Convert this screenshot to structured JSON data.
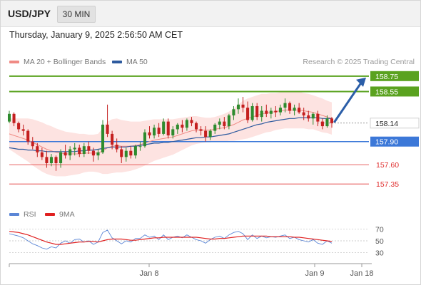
{
  "header": {
    "symbol": "USD/JPY",
    "timeframe": "30 MIN",
    "datetime": "Thursday, January 9, 2025 2:56:50 AM CET"
  },
  "legend": {
    "items": [
      {
        "label": "MA 20 + Bollinger Bands",
        "color": "#f08a84"
      },
      {
        "label": "MA 50",
        "color": "#2d5a9e"
      }
    ],
    "credit": "Research © 2025 Trading Central"
  },
  "rsi_legend": {
    "items": [
      {
        "label": "RSI",
        "color": "#5b86d6"
      },
      {
        "label": "9MA",
        "color": "#e02020"
      }
    ]
  },
  "chart_data": [
    {
      "type": "candlestick",
      "title": "USD/JPY 30 MIN",
      "grid": false,
      "y_range": [
        157.25,
        158.85
      ],
      "x_ticks": [
        "Jan 8",
        "Jan 9",
        "Jan 18"
      ],
      "levels": [
        {
          "value": 158.75,
          "label": "158.75",
          "color": "#5aa21f",
          "kind": "resistance"
        },
        {
          "value": 158.55,
          "label": "158.55",
          "color": "#5aa21f",
          "kind": "resistance"
        },
        {
          "value": 158.14,
          "label": "158.14",
          "color": "#222222",
          "kind": "last"
        },
        {
          "value": 157.9,
          "label": "157.90",
          "color": "#3c78d8",
          "kind": "pivot"
        },
        {
          "value": 157.6,
          "label": "157.60",
          "color": "#e03030",
          "kind": "support"
        },
        {
          "value": 157.35,
          "label": "157.35",
          "color": "#e03030",
          "kind": "support"
        }
      ],
      "scenario_arrow": {
        "from": 158.14,
        "to": 158.75,
        "direction": "up",
        "color": "#2b5ea8"
      },
      "candles": [
        [
          158.16,
          158.3,
          158.14,
          158.26
        ],
        [
          158.26,
          158.28,
          158.1,
          158.14
        ],
        [
          158.14,
          158.16,
          158.02,
          158.06
        ],
        [
          158.06,
          158.12,
          157.98,
          158.04
        ],
        [
          158.04,
          158.06,
          157.86,
          157.9
        ],
        [
          157.9,
          157.96,
          157.8,
          157.84
        ],
        [
          157.84,
          157.88,
          157.7,
          157.76
        ],
        [
          157.76,
          157.82,
          157.66,
          157.7
        ],
        [
          157.7,
          157.78,
          157.56,
          157.62
        ],
        [
          157.62,
          157.74,
          157.58,
          157.7
        ],
        [
          157.7,
          157.72,
          157.52,
          157.62
        ],
        [
          157.62,
          157.8,
          157.56,
          157.76
        ],
        [
          157.76,
          157.86,
          157.68,
          157.72
        ],
        [
          157.72,
          157.84,
          157.66,
          157.8
        ],
        [
          157.8,
          157.88,
          157.72,
          157.82
        ],
        [
          157.82,
          157.86,
          157.7,
          157.74
        ],
        [
          157.74,
          157.88,
          157.7,
          157.84
        ],
        [
          157.84,
          157.9,
          157.74,
          157.78
        ],
        [
          157.78,
          157.82,
          157.64,
          157.72
        ],
        [
          157.72,
          157.8,
          157.66,
          157.76
        ],
        [
          157.76,
          158.18,
          157.74,
          158.12
        ],
        [
          158.12,
          158.38,
          157.96,
          158.0
        ],
        [
          158.0,
          158.04,
          157.8,
          157.86
        ],
        [
          157.86,
          157.94,
          157.76,
          157.8
        ],
        [
          157.8,
          157.84,
          157.62,
          157.7
        ],
        [
          157.7,
          157.82,
          157.64,
          157.78
        ],
        [
          157.78,
          157.84,
          157.68,
          157.72
        ],
        [
          157.72,
          157.86,
          157.68,
          157.84
        ],
        [
          157.84,
          157.9,
          157.78,
          157.84
        ],
        [
          157.84,
          158.06,
          157.82,
          158.02
        ],
        [
          158.02,
          158.1,
          157.94,
          157.98
        ],
        [
          157.98,
          158.12,
          157.94,
          158.08
        ],
        [
          158.08,
          158.14,
          157.96,
          158.0
        ],
        [
          158.0,
          158.2,
          157.98,
          158.16
        ],
        [
          158.16,
          158.2,
          157.94,
          157.98
        ],
        [
          157.98,
          158.1,
          157.94,
          158.06
        ],
        [
          158.06,
          158.14,
          158.0,
          158.12
        ],
        [
          158.12,
          158.18,
          158.02,
          158.08
        ],
        [
          158.08,
          158.2,
          158.04,
          158.18
        ],
        [
          158.18,
          158.22,
          158.1,
          158.14
        ],
        [
          158.14,
          158.16,
          158.02,
          158.06
        ],
        [
          158.06,
          158.1,
          157.98,
          158.04
        ],
        [
          158.04,
          158.1,
          157.9,
          157.96
        ],
        [
          157.96,
          158.06,
          157.92,
          158.04
        ],
        [
          158.04,
          158.14,
          158.0,
          158.12
        ],
        [
          158.12,
          158.2,
          158.06,
          158.16
        ],
        [
          158.16,
          158.22,
          158.06,
          158.1
        ],
        [
          158.1,
          158.26,
          158.06,
          158.24
        ],
        [
          158.24,
          158.36,
          158.18,
          158.32
        ],
        [
          158.32,
          158.46,
          158.26,
          158.38
        ],
        [
          158.38,
          158.48,
          158.28,
          158.34
        ],
        [
          158.34,
          158.42,
          158.14,
          158.18
        ],
        [
          158.18,
          158.4,
          158.16,
          158.36
        ],
        [
          158.36,
          158.4,
          158.18,
          158.22
        ],
        [
          158.22,
          158.36,
          158.16,
          158.3
        ],
        [
          158.3,
          158.38,
          158.22,
          158.26
        ],
        [
          158.26,
          158.34,
          158.2,
          158.3
        ],
        [
          158.3,
          158.36,
          158.22,
          158.28
        ],
        [
          158.28,
          158.38,
          158.24,
          158.34
        ],
        [
          158.34,
          158.46,
          158.28,
          158.4
        ],
        [
          158.4,
          158.42,
          158.26,
          158.3
        ],
        [
          158.3,
          158.38,
          158.24,
          158.34
        ],
        [
          158.34,
          158.4,
          158.26,
          158.28
        ],
        [
          158.28,
          158.34,
          158.18,
          158.24
        ],
        [
          158.24,
          158.3,
          158.16,
          158.2
        ],
        [
          158.2,
          158.28,
          158.12,
          158.26
        ],
        [
          158.26,
          158.3,
          158.1,
          158.16
        ],
        [
          158.16,
          158.2,
          158.06,
          158.1
        ],
        [
          158.1,
          158.24,
          158.08,
          158.2
        ],
        [
          158.2,
          158.22,
          158.08,
          158.14
        ]
      ],
      "ma20": [
        158.0,
        157.98,
        157.96,
        157.94,
        157.92,
        157.89,
        157.86,
        157.83,
        157.8,
        157.78,
        157.76,
        157.75,
        157.74,
        157.74,
        157.74,
        157.74,
        157.75,
        157.75,
        157.75,
        157.75,
        157.78,
        157.82,
        157.84,
        157.85,
        157.84,
        157.84,
        157.84,
        157.85,
        157.86,
        157.88,
        157.9,
        157.92,
        157.93,
        157.94,
        157.95,
        157.96,
        157.98,
        158.0,
        158.02,
        158.04,
        158.05,
        158.05,
        158.05,
        158.05,
        158.06,
        158.07,
        158.08,
        158.1,
        158.12,
        158.15,
        158.18,
        158.2,
        158.22,
        158.24,
        158.26,
        158.27,
        158.28,
        158.29,
        158.3,
        158.31,
        158.31,
        158.31,
        158.31,
        158.3,
        158.29,
        158.28,
        158.26,
        158.24,
        158.22,
        158.2
      ],
      "ma50": [
        157.82,
        157.81,
        157.8,
        157.8,
        157.79,
        157.79,
        157.78,
        157.78,
        157.77,
        157.77,
        157.77,
        157.77,
        157.77,
        157.77,
        157.77,
        157.78,
        157.78,
        157.79,
        157.79,
        157.8,
        157.81,
        157.82,
        157.83,
        157.83,
        157.83,
        157.83,
        157.84,
        157.84,
        157.85,
        157.86,
        157.87,
        157.88,
        157.88,
        157.89,
        157.89,
        157.9,
        157.91,
        157.92,
        157.93,
        157.94,
        157.95,
        157.95,
        157.96,
        157.96,
        157.97,
        157.98,
        157.99,
        158.0,
        158.02,
        158.04,
        158.06,
        158.08,
        158.1,
        158.12,
        158.13,
        158.15,
        158.16,
        158.17,
        158.18,
        158.19,
        158.2,
        158.2,
        158.21,
        158.21,
        158.21,
        158.21,
        158.21,
        158.2,
        158.2,
        158.2
      ],
      "bb_width": [
        0.2,
        0.22,
        0.24,
        0.26,
        0.28,
        0.3,
        0.31,
        0.32,
        0.32,
        0.32,
        0.31,
        0.3,
        0.29,
        0.28,
        0.27,
        0.26,
        0.25,
        0.24,
        0.24,
        0.25,
        0.3,
        0.34,
        0.35,
        0.35,
        0.34,
        0.33,
        0.32,
        0.31,
        0.3,
        0.29,
        0.28,
        0.27,
        0.26,
        0.25,
        0.24,
        0.23,
        0.22,
        0.21,
        0.2,
        0.19,
        0.18,
        0.17,
        0.16,
        0.16,
        0.16,
        0.17,
        0.18,
        0.19,
        0.21,
        0.23,
        0.25,
        0.26,
        0.26,
        0.26,
        0.26,
        0.25,
        0.25,
        0.24,
        0.24,
        0.24,
        0.24,
        0.24,
        0.24,
        0.23,
        0.23,
        0.22,
        0.22,
        0.22,
        0.21,
        0.21
      ]
    },
    {
      "type": "line",
      "title": "RSI",
      "y_ticks": [
        70,
        50,
        30
      ],
      "y_range": [
        20,
        80
      ],
      "series": [
        {
          "name": "RSI",
          "color": "#5b86d6",
          "values": [
            62,
            60,
            58,
            55,
            50,
            45,
            42,
            38,
            36,
            40,
            38,
            46,
            50,
            46,
            52,
            53,
            48,
            50,
            44,
            48,
            64,
            68,
            55,
            50,
            45,
            50,
            48,
            54,
            54,
            60,
            56,
            58,
            52,
            60,
            52,
            56,
            58,
            55,
            60,
            56,
            52,
            50,
            46,
            52,
            56,
            58,
            54,
            60,
            64,
            66,
            62,
            52,
            60,
            54,
            58,
            55,
            57,
            56,
            58,
            60,
            54,
            56,
            52,
            50,
            48,
            52,
            46,
            44,
            50,
            46
          ]
        },
        {
          "name": "9MA",
          "color": "#e02020",
          "values": [
            66,
            65,
            64,
            62,
            60,
            57,
            54,
            51,
            48,
            46,
            44,
            44,
            45,
            46,
            47,
            48,
            48,
            49,
            49,
            48,
            50,
            52,
            53,
            53,
            53,
            52,
            51,
            51,
            52,
            53,
            54,
            55,
            55,
            56,
            56,
            56,
            56,
            56,
            56,
            56,
            56,
            55,
            54,
            53,
            53,
            54,
            54,
            55,
            56,
            57,
            58,
            58,
            58,
            58,
            58,
            58,
            57,
            57,
            57,
            57,
            57,
            56,
            56,
            55,
            54,
            53,
            52,
            51,
            50,
            49
          ]
        }
      ]
    }
  ]
}
